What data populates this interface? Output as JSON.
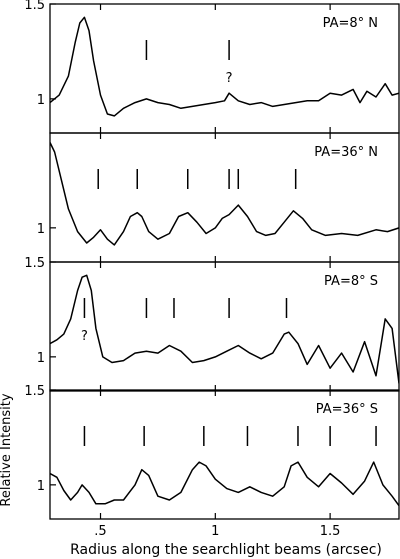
{
  "chart_data": {
    "type": "line",
    "xlabel": "Radius along the searchlight beams (arcsec)",
    "ylabel": "Relative Intensity",
    "xlim": [
      0.28,
      1.8
    ],
    "x_ticks": [
      {
        "value": 0.5,
        "label": ".5"
      },
      {
        "value": 1.0,
        "label": "1"
      },
      {
        "value": 1.5,
        "label": "1.5"
      }
    ],
    "ylim": [
      0.82,
      1.5
    ],
    "y_ticks": [
      {
        "value": 1.0,
        "label": "1"
      },
      {
        "value": 1.5,
        "label": "1.5"
      }
    ],
    "grid": false,
    "panels": [
      {
        "label": "PA=8° N",
        "show_top_tick": true,
        "markers": [
          0.7,
          1.06
        ],
        "annotations": [
          {
            "text": "?",
            "x": 1.06
          }
        ],
        "x": [
          0.28,
          0.32,
          0.36,
          0.39,
          0.41,
          0.43,
          0.45,
          0.47,
          0.5,
          0.53,
          0.56,
          0.6,
          0.65,
          0.7,
          0.75,
          0.8,
          0.85,
          0.9,
          0.95,
          1.0,
          1.04,
          1.06,
          1.1,
          1.15,
          1.2,
          1.25,
          1.3,
          1.35,
          1.4,
          1.45,
          1.5,
          1.55,
          1.6,
          1.63,
          1.66,
          1.7,
          1.74,
          1.77,
          1.8
        ],
        "y": [
          0.98,
          1.02,
          1.12,
          1.3,
          1.4,
          1.43,
          1.36,
          1.2,
          1.02,
          0.92,
          0.91,
          0.95,
          0.98,
          1.0,
          0.98,
          0.97,
          0.95,
          0.96,
          0.97,
          0.98,
          0.99,
          1.03,
          0.99,
          0.97,
          0.98,
          0.96,
          0.97,
          0.98,
          0.99,
          0.99,
          1.03,
          1.02,
          1.05,
          0.98,
          1.04,
          1.01,
          1.08,
          1.02,
          1.03
        ]
      },
      {
        "label": "PA=36° N",
        "show_top_tick": false,
        "markers": [
          0.49,
          0.66,
          0.88,
          1.06,
          1.1,
          1.35
        ],
        "annotations": [],
        "x": [
          0.28,
          0.3,
          0.33,
          0.36,
          0.4,
          0.44,
          0.47,
          0.5,
          0.53,
          0.56,
          0.6,
          0.63,
          0.66,
          0.68,
          0.71,
          0.75,
          0.8,
          0.84,
          0.88,
          0.92,
          0.96,
          1.0,
          1.03,
          1.06,
          1.1,
          1.14,
          1.18,
          1.22,
          1.26,
          1.3,
          1.34,
          1.38,
          1.42,
          1.48,
          1.55,
          1.62,
          1.7,
          1.75,
          1.8
        ],
        "y": [
          1.45,
          1.4,
          1.25,
          1.1,
          0.98,
          0.92,
          0.95,
          0.99,
          0.94,
          0.91,
          0.98,
          1.06,
          1.08,
          1.06,
          0.98,
          0.94,
          0.97,
          1.06,
          1.08,
          1.03,
          0.97,
          1.0,
          1.05,
          1.07,
          1.12,
          1.06,
          0.98,
          0.96,
          0.97,
          1.03,
          1.09,
          1.05,
          0.99,
          0.96,
          0.97,
          0.96,
          0.99,
          0.98,
          1.0
        ]
      },
      {
        "label": "PA=8° S",
        "show_top_tick": true,
        "markers": [
          0.43,
          0.7,
          0.82,
          1.06,
          1.31
        ],
        "annotations": [
          {
            "text": "?",
            "x": 0.43
          }
        ],
        "x": [
          0.28,
          0.31,
          0.34,
          0.37,
          0.4,
          0.42,
          0.44,
          0.46,
          0.48,
          0.51,
          0.55,
          0.6,
          0.65,
          0.7,
          0.75,
          0.8,
          0.85,
          0.9,
          0.95,
          1.0,
          1.05,
          1.1,
          1.15,
          1.2,
          1.25,
          1.3,
          1.32,
          1.36,
          1.4,
          1.45,
          1.5,
          1.55,
          1.6,
          1.65,
          1.7,
          1.74,
          1.77,
          1.8
        ],
        "y": [
          1.07,
          1.09,
          1.12,
          1.2,
          1.35,
          1.42,
          1.43,
          1.35,
          1.15,
          1.0,
          0.97,
          0.98,
          1.02,
          1.03,
          1.02,
          1.06,
          1.03,
          0.97,
          0.98,
          1.0,
          1.03,
          1.06,
          1.02,
          0.99,
          1.02,
          1.12,
          1.13,
          1.07,
          0.96,
          1.06,
          0.94,
          1.02,
          0.92,
          1.08,
          0.9,
          1.2,
          1.15,
          0.86
        ]
      },
      {
        "label": "PA=36° S",
        "show_top_tick": true,
        "markers": [
          0.43,
          0.69,
          0.95,
          1.14,
          1.36,
          1.5,
          1.7
        ],
        "annotations": [],
        "x": [
          0.28,
          0.31,
          0.34,
          0.37,
          0.4,
          0.42,
          0.45,
          0.48,
          0.52,
          0.56,
          0.6,
          0.65,
          0.68,
          0.71,
          0.75,
          0.8,
          0.85,
          0.9,
          0.93,
          0.96,
          1.0,
          1.05,
          1.1,
          1.15,
          1.2,
          1.25,
          1.3,
          1.33,
          1.36,
          1.4,
          1.45,
          1.5,
          1.55,
          1.6,
          1.65,
          1.69,
          1.73,
          1.77,
          1.8
        ],
        "y": [
          1.06,
          1.04,
          0.97,
          0.92,
          0.96,
          1.0,
          0.96,
          0.9,
          0.9,
          0.92,
          0.92,
          1.0,
          1.08,
          1.05,
          0.94,
          0.92,
          0.96,
          1.08,
          1.12,
          1.1,
          1.03,
          0.98,
          0.96,
          0.99,
          0.96,
          0.94,
          0.99,
          1.1,
          1.12,
          1.04,
          0.99,
          1.06,
          1.01,
          0.95,
          1.02,
          1.12,
          1.0,
          0.94,
          0.89
        ]
      }
    ]
  }
}
